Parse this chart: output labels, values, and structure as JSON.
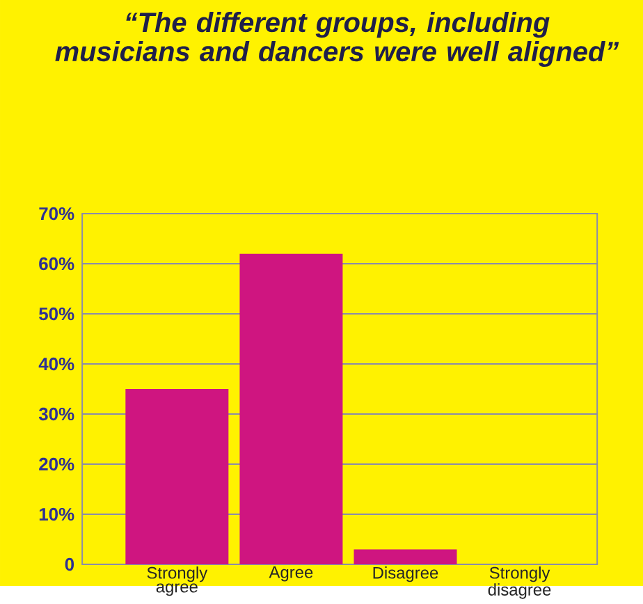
{
  "chart_data": {
    "type": "bar",
    "title": "“The different groups, including musicians and dancers were well aligned”",
    "categories": [
      "Strongly agree",
      "Agree",
      "Disagree",
      "Strongly disagree"
    ],
    "values": [
      35,
      62,
      3,
      0
    ],
    "color": "#cf1580",
    "ylim": [
      0,
      70
    ],
    "yticks": [
      {
        "value": 0,
        "label": "0"
      },
      {
        "value": 10,
        "label": "10%"
      },
      {
        "value": 20,
        "label": "20%"
      },
      {
        "value": 30,
        "label": "30%"
      },
      {
        "value": 40,
        "label": "40%"
      },
      {
        "value": 50,
        "label": "50%"
      },
      {
        "value": 60,
        "label": "60%"
      },
      {
        "value": 70,
        "label": "70%"
      }
    ],
    "grid": "y"
  }
}
